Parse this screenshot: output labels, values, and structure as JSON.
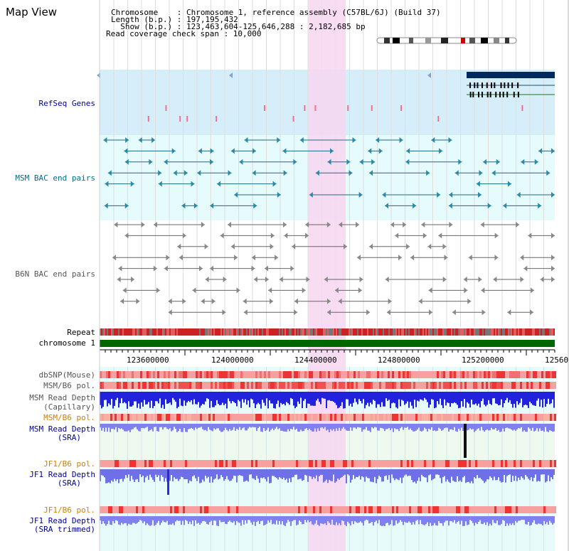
{
  "title": "Map View",
  "info": {
    "chromosome": "Chromosome    : Chromosome 1, reference assembly (C57BL/6J) (Build 37)",
    "length": "Length (b.p.) : 197,195,432",
    "show": "  Show (b.p.) : 123,463,604-125,646,288 : 2,182,685 bp",
    "coverage": "Read coverage check span : 10,000"
  },
  "tracks": {
    "refseq": "RefSeq Genes",
    "msm_bac": "MSM BAC end pairs",
    "b6n_bac": "B6N BAC end pairs",
    "repeat": "Repeat",
    "chromosome": "chromosome 1",
    "dbsnp": "dbSNP(Mouse)",
    "msm_b6_pol": "MSM/B6 pol.",
    "msm_read_depth_cap_1": "MSM Read Depth",
    "msm_read_depth_cap_2": "(Capillary)",
    "msm_b6_pol_2": "MSM/B6 pol.",
    "msm_read_depth_sra_1": "MSM Read Depth",
    "msm_read_depth_sra_2": "(SRA)",
    "jf1_b6_pol": "JF1/B6 pol.",
    "jf1_read_depth_1": "JF1 Read Depth",
    "jf1_read_depth_2": "(SRA)",
    "jf1_b6_pol_2": "JF1/B6 pol.",
    "jf1_read_depth_trim_1": "JF1 Read Depth",
    "jf1_read_depth_trim_2": "(SRA trimmed)"
  },
  "axis_ticks": [
    "123600000",
    "124000000",
    "124400000",
    "124800000",
    "125200000",
    "12560"
  ],
  "colors": {
    "navy_label": "#000099",
    "teal_label": "#006f87",
    "highlight": "#f7d6f0",
    "refseq_bg": "#d9f0fa",
    "chromosome_bar": "#006600"
  }
}
